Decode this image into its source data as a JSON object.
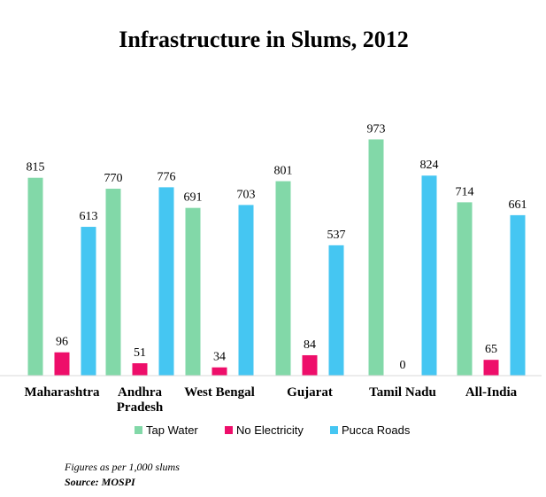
{
  "chart_data": {
    "type": "bar",
    "title": "Infrastructure in Slums, 2012",
    "categories": [
      [
        "Maharashtra"
      ],
      [
        "Andhra",
        "Pradesh"
      ],
      [
        "West Bengal"
      ],
      [
        "Gujarat"
      ],
      [
        "Tamil Nadu"
      ],
      [
        "All-India"
      ]
    ],
    "series": [
      {
        "name": "Tap Water",
        "color": "#82d8a8",
        "values": [
          815,
          770,
          691,
          801,
          973,
          714
        ]
      },
      {
        "name": "No Electricity",
        "color": "#ee0e6a",
        "values": [
          96,
          51,
          34,
          84,
          0,
          65
        ]
      },
      {
        "name": "Pucca Roads",
        "color": "#45c6f2",
        "values": [
          613,
          776,
          703,
          537,
          824,
          661
        ]
      }
    ],
    "ylim": [
      0,
      1000
    ],
    "grid": false,
    "legend_position": "bottom"
  },
  "note": "Figures as per 1,000 slums",
  "source": "Source: MOSPI"
}
